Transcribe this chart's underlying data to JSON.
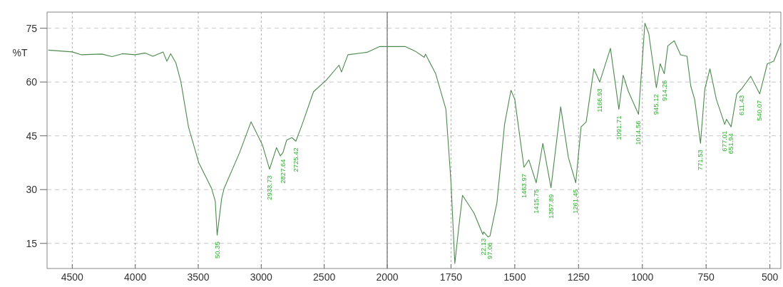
{
  "chart_data": [
    {
      "type": "line",
      "ylabel": "%T",
      "xlim": [
        4700,
        2000
      ],
      "ylim": [
        8,
        79.5
      ],
      "xticks": [
        4500,
        4000,
        3500,
        3000,
        2500,
        2000
      ],
      "yticks": [
        15,
        30,
        45,
        60,
        75
      ],
      "grid": true,
      "marker": "none",
      "line_style": "solid",
      "series": [
        {
          "color": "#4d8a4d",
          "x": [
            4690,
            4500,
            4427,
            4265,
            4184,
            4103,
            4000,
            3921,
            3860,
            3779,
            3749,
            3719,
            3678,
            3638,
            3577,
            3496,
            3395,
            3365,
            3350,
            3314,
            3294,
            3172,
            3081,
            2990,
            2934,
            2879,
            2848,
            2828,
            2798,
            2757,
            2725,
            2676,
            2585,
            2484,
            2383,
            2363,
            2312,
            2160,
            2059,
            2000
          ],
          "values": [
            68.9,
            68.4,
            67.6,
            67.8,
            67.1,
            67.9,
            67.6,
            68.1,
            67.2,
            68.4,
            65.8,
            67.9,
            65.4,
            60.1,
            47.4,
            37.5,
            30.4,
            26.8,
            17.3,
            27.6,
            30.4,
            40.3,
            48.9,
            42.4,
            35.7,
            41.7,
            39.4,
            40.3,
            43.8,
            44.5,
            43.5,
            48.1,
            57.3,
            60.5,
            64.7,
            62.8,
            67.6,
            68.3,
            69.9,
            69.9
          ]
        }
      ],
      "annotations": [
        {
          "text": "50.35",
          "x": 3350,
          "y": 17.3
        },
        {
          "text": "2933.73",
          "x": 2934,
          "y": 35.7
        },
        {
          "text": "2827.64",
          "x": 2828,
          "y": 40.3
        },
        {
          "text": "2725.42",
          "x": 2725,
          "y": 43.5
        }
      ]
    },
    {
      "type": "line",
      "xlim": [
        2000,
        457
      ],
      "ylim": [
        8,
        79.5
      ],
      "xticks": [
        1750,
        1500,
        1250,
        1000,
        750,
        500
      ],
      "yticks": [
        15,
        30,
        45,
        60,
        75
      ],
      "grid": true,
      "marker": "none",
      "line_style": "solid",
      "tick_labels": "x",
      "series": [
        {
          "color": "#4d8a4d",
          "x": [
            2000,
            1930,
            1890,
            1855,
            1850,
            1810,
            1770,
            1750,
            1735,
            1720,
            1705,
            1660,
            1625,
            1622,
            1605,
            1597,
            1570,
            1540,
            1515,
            1500,
            1464,
            1445,
            1416,
            1390,
            1358,
            1320,
            1290,
            1261,
            1240,
            1220,
            1190,
            1167,
            1125,
            1092,
            1075,
            1055,
            1015,
            990,
            975,
            945,
            930,
            914,
            900,
            875,
            850,
            825,
            810,
            795,
            772,
            755,
            735,
            710,
            677,
            670,
            652,
            630,
            611,
            575,
            540,
            510,
            485,
            457
          ],
          "values": [
            69.9,
            69.9,
            68.6,
            66.9,
            67.8,
            62.3,
            52.4,
            32,
            9.4,
            19.2,
            28.4,
            23.5,
            17.5,
            18.2,
            16.8,
            17.1,
            26.3,
            48.2,
            57.7,
            55.2,
            36.2,
            38.3,
            31.9,
            42.9,
            30.5,
            53.1,
            39,
            31.9,
            47.5,
            48.9,
            63.7,
            60,
            69.4,
            52.4,
            61.9,
            57.4,
            51,
            76.4,
            73.6,
            58.4,
            65.1,
            62.3,
            70.1,
            71.5,
            67.6,
            67.2,
            58.8,
            55.2,
            42.9,
            58.1,
            63.7,
            55.2,
            48.2,
            49.6,
            47.5,
            56.7,
            58.1,
            61.6,
            56.7,
            65.1,
            65.8,
            70.8
          ]
        }
      ],
      "annotations": [
        {
          "text": "22.13",
          "x": 1622,
          "y": 18.2
        },
        {
          "text": "97.06",
          "x": 1597,
          "y": 17.1
        },
        {
          "text": "1463.97",
          "x": 1464,
          "y": 36.2
        },
        {
          "text": "1415.75",
          "x": 1416,
          "y": 31.9
        },
        {
          "text": "1357.89",
          "x": 1358,
          "y": 30.5
        },
        {
          "text": "1261.45",
          "x": 1261,
          "y": 31.9
        },
        {
          "text": "1166.93",
          "x": 1167,
          "y": 60
        },
        {
          "text": "1091.71",
          "x": 1092,
          "y": 52.4
        },
        {
          "text": "1014.56",
          "x": 1015,
          "y": 51
        },
        {
          "text": "945.12",
          "x": 945,
          "y": 58.4
        },
        {
          "text": "914.26",
          "x": 914,
          "y": 62.3
        },
        {
          "text": "771.53",
          "x": 772,
          "y": 42.9
        },
        {
          "text": "677.01",
          "x": 677,
          "y": 48.2
        },
        {
          "text": "651.94",
          "x": 652,
          "y": 47.5
        },
        {
          "text": "611.43",
          "x": 611,
          "y": 58.1
        },
        {
          "text": "540.07",
          "x": 540,
          "y": 56.7
        }
      ]
    }
  ]
}
